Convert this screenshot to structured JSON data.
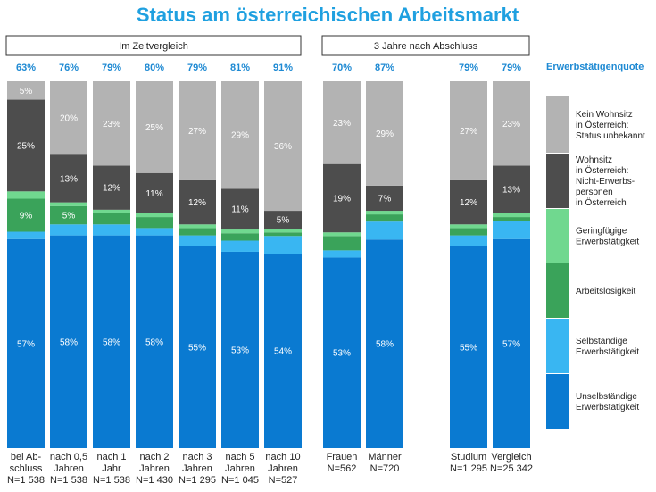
{
  "chart_data": {
    "type": "bar",
    "stacked": true,
    "title": "Status am österreichischen Arbeitsmarkt",
    "groups": [
      {
        "label": "Im Zeitvergleich"
      },
      {
        "label": "3 Jahre nach Abschluss"
      }
    ],
    "quota_label": "Erwerbstätigenquote",
    "categories": [
      {
        "lines": [
          "bei Ab-",
          "schluss",
          "N=1 538"
        ],
        "quote": "63%"
      },
      {
        "lines": [
          "nach 0,5",
          "Jahren",
          "N=1 538"
        ],
        "quote": "76%"
      },
      {
        "lines": [
          "nach 1",
          "Jahr",
          "N=1 538"
        ],
        "quote": "79%"
      },
      {
        "lines": [
          "nach 2",
          "Jahren",
          "N=1 430"
        ],
        "quote": "80%"
      },
      {
        "lines": [
          "nach 3",
          "Jahren",
          "N=1 295"
        ],
        "quote": "79%"
      },
      {
        "lines": [
          "nach 5",
          "Jahren",
          "N=1 045"
        ],
        "quote": "81%"
      },
      {
        "lines": [
          "nach 10",
          "Jahren",
          "N=527"
        ],
        "quote": "91%"
      },
      {
        "lines": [
          "Frauen",
          "N=562"
        ],
        "quote": "70%"
      },
      {
        "lines": [
          "Männer",
          "N=720"
        ],
        "quote": "87%"
      },
      {
        "lines": [
          "Studium",
          "N=1 295"
        ],
        "quote": "79%"
      },
      {
        "lines": [
          "Vergleich",
          "N=25 342"
        ],
        "quote": "79%"
      }
    ],
    "series": [
      {
        "name": "Unselbständige Erwerbstätigkeit",
        "legend_lines": [
          "Unselbständige",
          "Erwerbstätigkeit"
        ],
        "color": "#0a7ad1",
        "values": [
          57,
          58,
          58,
          58,
          55,
          53,
          54,
          53,
          58,
          55,
          57
        ],
        "labels": [
          "57%",
          "58%",
          "58%",
          "58%",
          "55%",
          "53%",
          "54%",
          "53%",
          "58%",
          "55%",
          "57%"
        ]
      },
      {
        "name": "Selbständige Erwerbstätigkeit",
        "legend_lines": [
          "Selbständige",
          "Erwerbstätigkeit"
        ],
        "color": "#39b6f2",
        "values": [
          2,
          3,
          3,
          2,
          3,
          3,
          5,
          2,
          5,
          3,
          5
        ],
        "labels": [
          "",
          "",
          "",
          "",
          "",
          "",
          "",
          "",
          "",
          "",
          ""
        ]
      },
      {
        "name": "Arbeitslosigkeit",
        "legend_lines": [
          "Arbeitslosigkeit"
        ],
        "color": "#3aa35a",
        "values": [
          9,
          5,
          3,
          3,
          2,
          2,
          1,
          4,
          2,
          2,
          1
        ],
        "labels": [
          "9%",
          "5%",
          "",
          "",
          "",
          "",
          "",
          "",
          "",
          "",
          ""
        ]
      },
      {
        "name": "Geringfügige Erwerbstätigkeit",
        "legend_lines": [
          "Geringfügige",
          "Erwerbstätigkeit"
        ],
        "color": "#70d88f",
        "values": [
          2,
          1,
          1,
          1,
          1,
          1,
          1,
          1,
          1,
          1,
          1
        ],
        "labels": [
          "",
          "",
          "",
          "",
          "",
          "",
          "",
          "",
          "",
          "",
          ""
        ]
      },
      {
        "name": "Wohnsitz in Österreich: Nicht-Erwerbspersonen in Österreich",
        "legend_lines": [
          "Wohnsitz",
          "in Österreich:",
          "Nicht-Erwerbs-",
          "personen",
          "in Österreich"
        ],
        "color": "#4d4d4d",
        "values": [
          25,
          13,
          12,
          11,
          12,
          11,
          5,
          19,
          7,
          12,
          13
        ],
        "labels": [
          "25%",
          "13%",
          "12%",
          "11%",
          "12%",
          "11%",
          "5%",
          "19%",
          "7%",
          "12%",
          "13%"
        ]
      },
      {
        "name": "Kein Wohnsitz in Österreich: Status unbekannt",
        "legend_lines": [
          "Kein Wohnsitz",
          "in Österreich:",
          "Status unbekannt"
        ],
        "color": "#b3b3b3",
        "values": [
          5,
          20,
          23,
          25,
          27,
          29,
          36,
          23,
          29,
          27,
          23
        ],
        "labels": [
          "5%",
          "20%",
          "23%",
          "25%",
          "27%",
          "29%",
          "36%",
          "23%",
          "29%",
          "27%",
          "23%"
        ]
      }
    ],
    "ylim": [
      0,
      100
    ],
    "xlabel": "",
    "ylabel": ""
  }
}
